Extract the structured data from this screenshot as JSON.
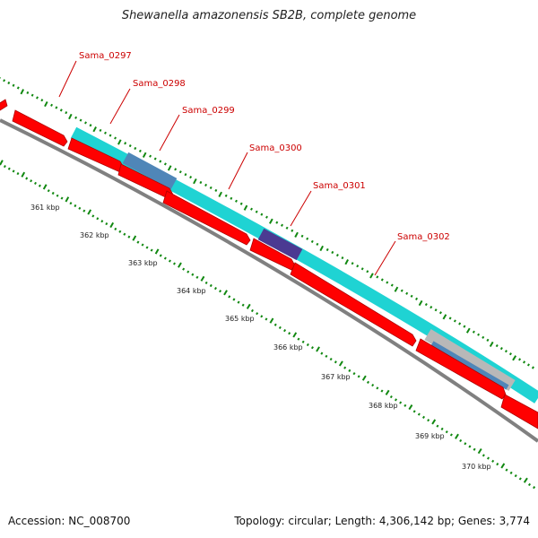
{
  "title": "Shewanella amazonensis SB2B, complete genome",
  "footer": {
    "accession": "Accession: NC_008700",
    "stats": "Topology: circular; Length: 4,306,142 bp; Genes: 3,774"
  },
  "genes": [
    {
      "name": "Sama_0297"
    },
    {
      "name": "Sama_0298"
    },
    {
      "name": "Sama_0299"
    },
    {
      "name": "Sama_0300"
    },
    {
      "name": "Sama_0301"
    },
    {
      "name": "Sama_0302"
    }
  ],
  "scale_labels": [
    "361 kbp",
    "362 kbp",
    "363 kbp",
    "364 kbp",
    "365 kbp",
    "366 kbp",
    "367 kbp",
    "368 kbp",
    "369 kbp",
    "370 kbp"
  ],
  "colors": {
    "cds": "#ff0000",
    "cds_edge": "#b00000",
    "cyan": "#1fd3d3",
    "steel": "#4f86b8",
    "indigo": "#4b3a92",
    "gray": "#b8b8b8",
    "backbone": "#808080",
    "tick": "#118811",
    "label": "#cc0000"
  }
}
